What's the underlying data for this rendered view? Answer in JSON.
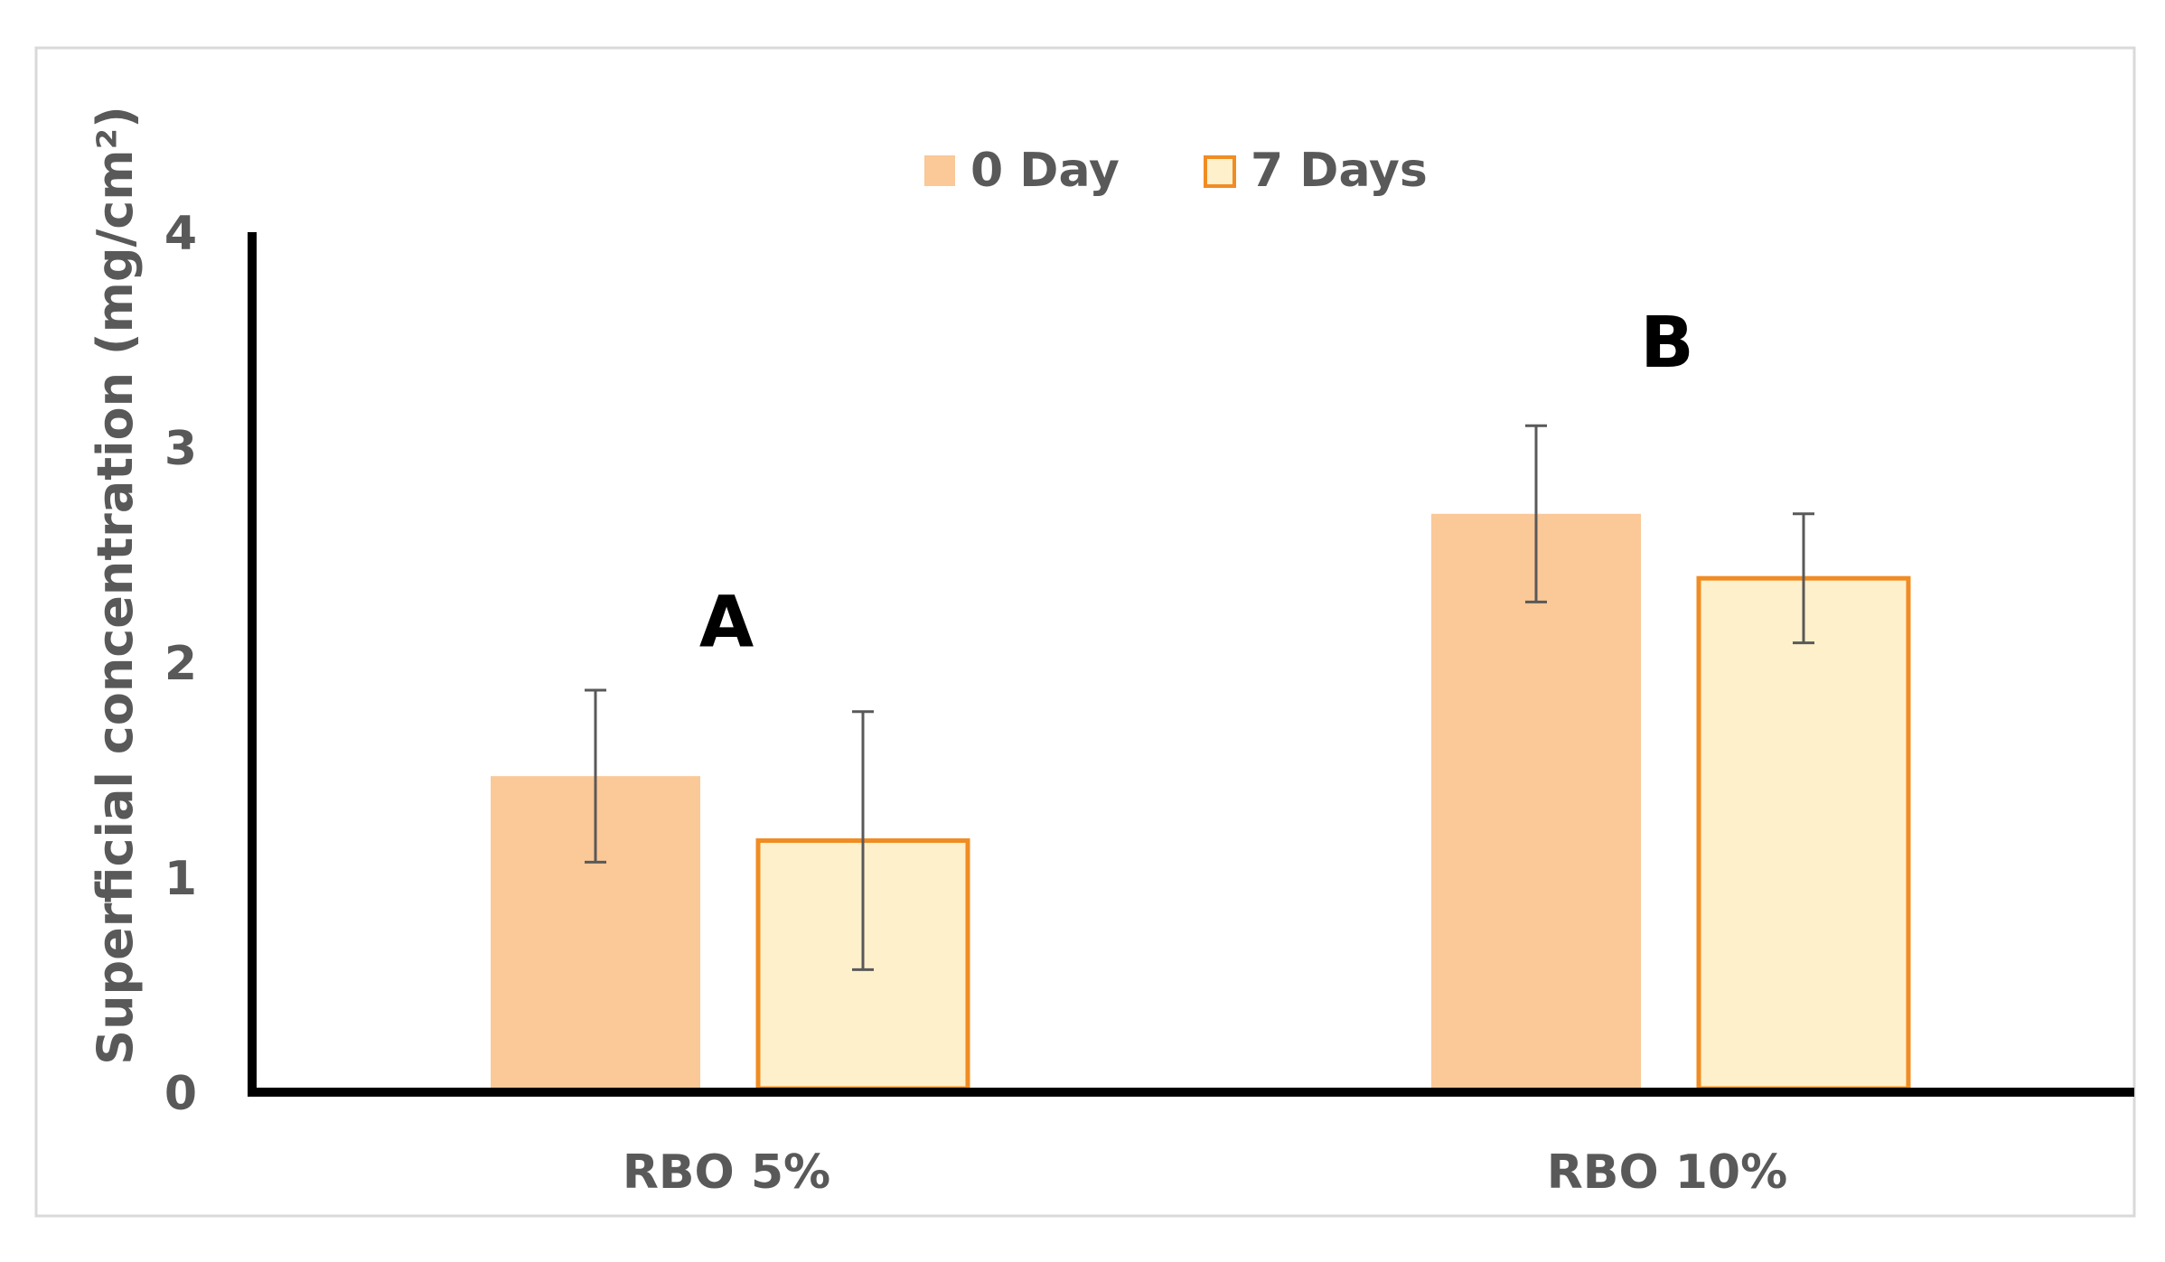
{
  "chart_data": {
    "type": "bar",
    "title": "",
    "xlabel": "",
    "ylabel": "Superficial concentration (mg/cm²)",
    "ylim": [
      0,
      4
    ],
    "yticks": [
      "0",
      "1",
      "2",
      "3",
      "4"
    ],
    "categories": [
      "RBO 5%",
      "RBO 10%"
    ],
    "series": [
      {
        "name": "0 Day",
        "values": [
          1.47,
          2.69
        ],
        "errors": [
          0.4,
          0.41
        ],
        "fill": "#FBC897",
        "stroke": "none"
      },
      {
        "name": "7 Days",
        "values": [
          1.17,
          2.39
        ],
        "errors": [
          0.6,
          0.3
        ],
        "fill": "#FEF0CB",
        "stroke": "#F08C23"
      }
    ],
    "annotations": [
      {
        "text": "A",
        "category": "RBO 5%",
        "value": 2.2
      },
      {
        "text": "B",
        "category": "RBO 10%",
        "value": 3.5
      }
    ],
    "legend_position": "top-center",
    "grid": false
  },
  "colors": {
    "axis": "#000000",
    "text": "#595959",
    "error_bar": "#595959",
    "frame": "#D9D9D9"
  }
}
